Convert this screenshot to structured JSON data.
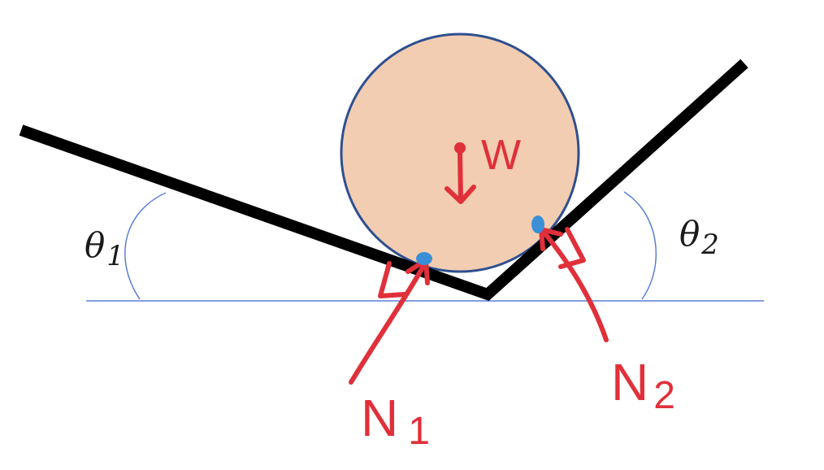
{
  "labels": {
    "theta1": "θ",
    "theta1_sub": "1",
    "theta2": "θ",
    "theta2_sub": "2",
    "weight": "W",
    "normal1": "N",
    "normal1_sub": "1",
    "normal2": "N",
    "normal2_sub": "2"
  },
  "colors": {
    "surface": "#000000",
    "ball_fill": "#f2cdb2",
    "ball_stroke": "#2f4f8f",
    "reference": "#5b7fd6",
    "force": "#e0303a",
    "contact": "#3a8fd6"
  }
}
